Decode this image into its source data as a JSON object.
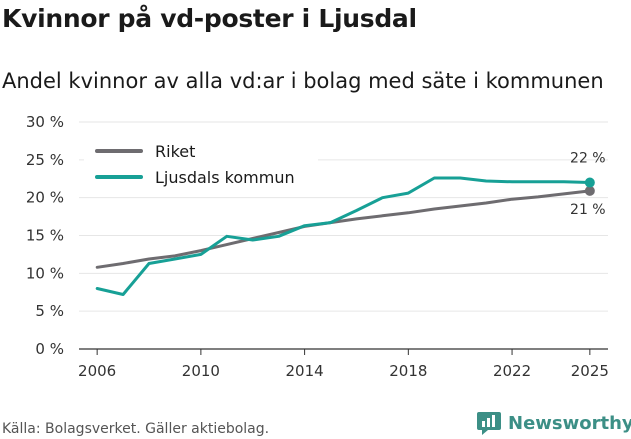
{
  "title": "Kvinnor på vd-poster i Ljusdal",
  "subtitle": "Andel kvinnor av alla vd:ar i bolag med säte i kommunen",
  "source": "Källa: Bolagsverket. Gäller aktiebolag.",
  "brand": "Newsworthy",
  "colors": {
    "riket": "#6e6c70",
    "ljusdal": "#17a096",
    "grid": "#e6e6e6",
    "axis": "#333333",
    "brand": "#3c8f86"
  },
  "chart_data": {
    "type": "line",
    "title": "Kvinnor på vd-poster i Ljusdal",
    "subtitle": "Andel kvinnor av alla vd:ar i bolag med säte i kommunen",
    "xlabel": "",
    "ylabel": "",
    "xlim": [
      2006,
      2025
    ],
    "ylim": [
      0,
      30
    ],
    "x_ticks": [
      "2006",
      "2010",
      "2014",
      "2018",
      "2022",
      "2025"
    ],
    "x_tick_values": [
      2006,
      2010,
      2014,
      2018,
      2022,
      2025
    ],
    "y_ticks": [
      "0 %",
      "5 %",
      "10 %",
      "15 %",
      "20 %",
      "25 %",
      "30 %"
    ],
    "y_tick_values": [
      0,
      5,
      10,
      15,
      20,
      25,
      30
    ],
    "legend_position": "top-left",
    "grid": true,
    "series": [
      {
        "name": "Riket",
        "color": "#6e6c70",
        "x": [
          2006,
          2007,
          2008,
          2009,
          2010,
          2011,
          2012,
          2013,
          2014,
          2015,
          2016,
          2017,
          2018,
          2019,
          2020,
          2021,
          2022,
          2023,
          2024,
          2025
        ],
        "values": [
          10.8,
          11.3,
          11.9,
          12.3,
          13.0,
          13.8,
          14.6,
          15.4,
          16.2,
          16.7,
          17.2,
          17.6,
          18.0,
          18.5,
          18.9,
          19.3,
          19.8,
          20.1,
          20.5,
          20.9
        ],
        "end_label": "21 %"
      },
      {
        "name": "Ljusdals kommun",
        "color": "#17a096",
        "x": [
          2006,
          2007,
          2008,
          2009,
          2010,
          2011,
          2012,
          2013,
          2014,
          2015,
          2016,
          2017,
          2018,
          2019,
          2020,
          2021,
          2022,
          2023,
          2024,
          2025
        ],
        "values": [
          8.0,
          7.2,
          11.3,
          11.9,
          12.5,
          14.9,
          14.4,
          14.9,
          16.3,
          16.7,
          18.3,
          20.0,
          20.6,
          22.6,
          22.6,
          22.2,
          22.1,
          22.1,
          22.1,
          22.0
        ],
        "end_label": "22 %"
      }
    ]
  }
}
